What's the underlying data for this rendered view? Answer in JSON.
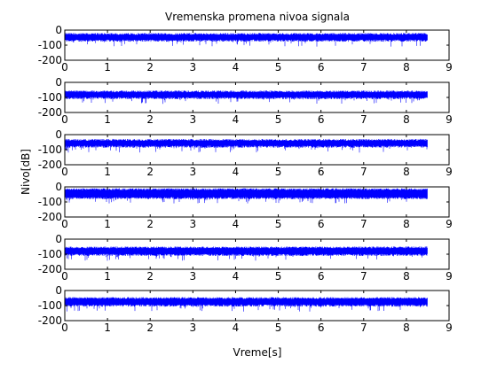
{
  "chart_data": {
    "type": "line",
    "title": "Vremenska promena nivoa signala",
    "xlabel": "Vreme[s]",
    "ylabel": "Nivo[dB]",
    "xlim": [
      0,
      9
    ],
    "ylim": [
      -200,
      0
    ],
    "x_ticks": [
      0,
      1,
      2,
      3,
      4,
      5,
      6,
      7,
      8,
      9
    ],
    "y_ticks": [
      0,
      -100,
      -200
    ],
    "series_color": "#0000ff",
    "subplots": [
      {
        "x_start": 0,
        "x_end": 8.5,
        "level_top": -25,
        "level_bottom": -70,
        "dip_min": -110
      },
      {
        "x_start": 0,
        "x_end": 8.5,
        "level_top": -60,
        "level_bottom": -105,
        "dip_min": -145
      },
      {
        "x_start": 0,
        "x_end": 8.5,
        "level_top": -35,
        "level_bottom": -80,
        "dip_min": -120
      },
      {
        "x_start": 0,
        "x_end": 8.5,
        "level_top": -15,
        "level_bottom": -75,
        "dip_min": -110
      },
      {
        "x_start": 0,
        "x_end": 8.5,
        "level_top": -55,
        "level_bottom": -105,
        "dip_min": -145
      },
      {
        "x_start": 0,
        "x_end": 8.5,
        "level_top": -50,
        "level_bottom": -100,
        "dip_min": -140
      }
    ]
  }
}
